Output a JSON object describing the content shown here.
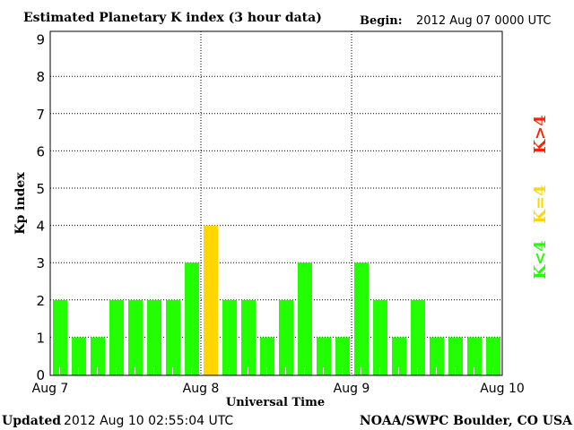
{
  "chart_data": {
    "type": "bar",
    "title": "Estimated Planetary K index (3 hour data)",
    "begin_label": "Begin:",
    "begin_value": "2012 Aug 07 0000 UTC",
    "xlabel": "Universal Time",
    "ylabel": "Kp index",
    "ylim": [
      0,
      9
    ],
    "yticks": [
      "0",
      "1",
      "2",
      "3",
      "4",
      "5",
      "6",
      "7",
      "8",
      "9"
    ],
    "xticks": [
      "Aug 7",
      "Aug 8",
      "Aug 9",
      "Aug 10"
    ],
    "grid": true,
    "values": [
      2,
      1,
      1,
      2,
      2,
      2,
      2,
      3,
      4,
      2,
      2,
      1,
      2,
      3,
      1,
      1,
      3,
      2,
      1,
      2,
      1,
      1,
      1,
      1
    ],
    "legend": [
      {
        "label": "K<4",
        "color": "#22ff00"
      },
      {
        "label": "K=4",
        "color": "#ffd700"
      },
      {
        "label": "K>4",
        "color": "#ff2200"
      }
    ],
    "colors": {
      "low": "#22ff00",
      "moderate": "#ffd700",
      "high": "#ff2200"
    }
  },
  "footer": {
    "updated_label": "Updated",
    "updated_value": "2012 Aug 10 02:55:04 UTC",
    "source": "NOAA/SWPC Boulder, CO USA"
  }
}
